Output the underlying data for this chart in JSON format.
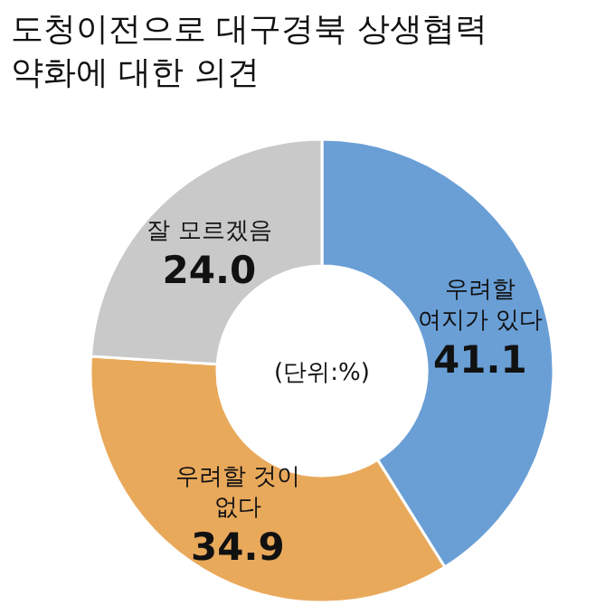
{
  "chart_data": {
    "type": "donut",
    "title": "도청이전으로 대구경북 상생협력\n약화에 대한 의견",
    "categories": [
      "우려할\n여지가 있다",
      "우려할 것이\n없다",
      "잘 모르겠음"
    ],
    "values": [
      41.1,
      34.9,
      24.0
    ],
    "colors": [
      "#6a9fd6",
      "#e9a95b",
      "#c9c9c9"
    ],
    "value_labels": [
      "41.1",
      "34.9",
      "24.0"
    ],
    "annotations": [
      "(단위:%)"
    ]
  }
}
